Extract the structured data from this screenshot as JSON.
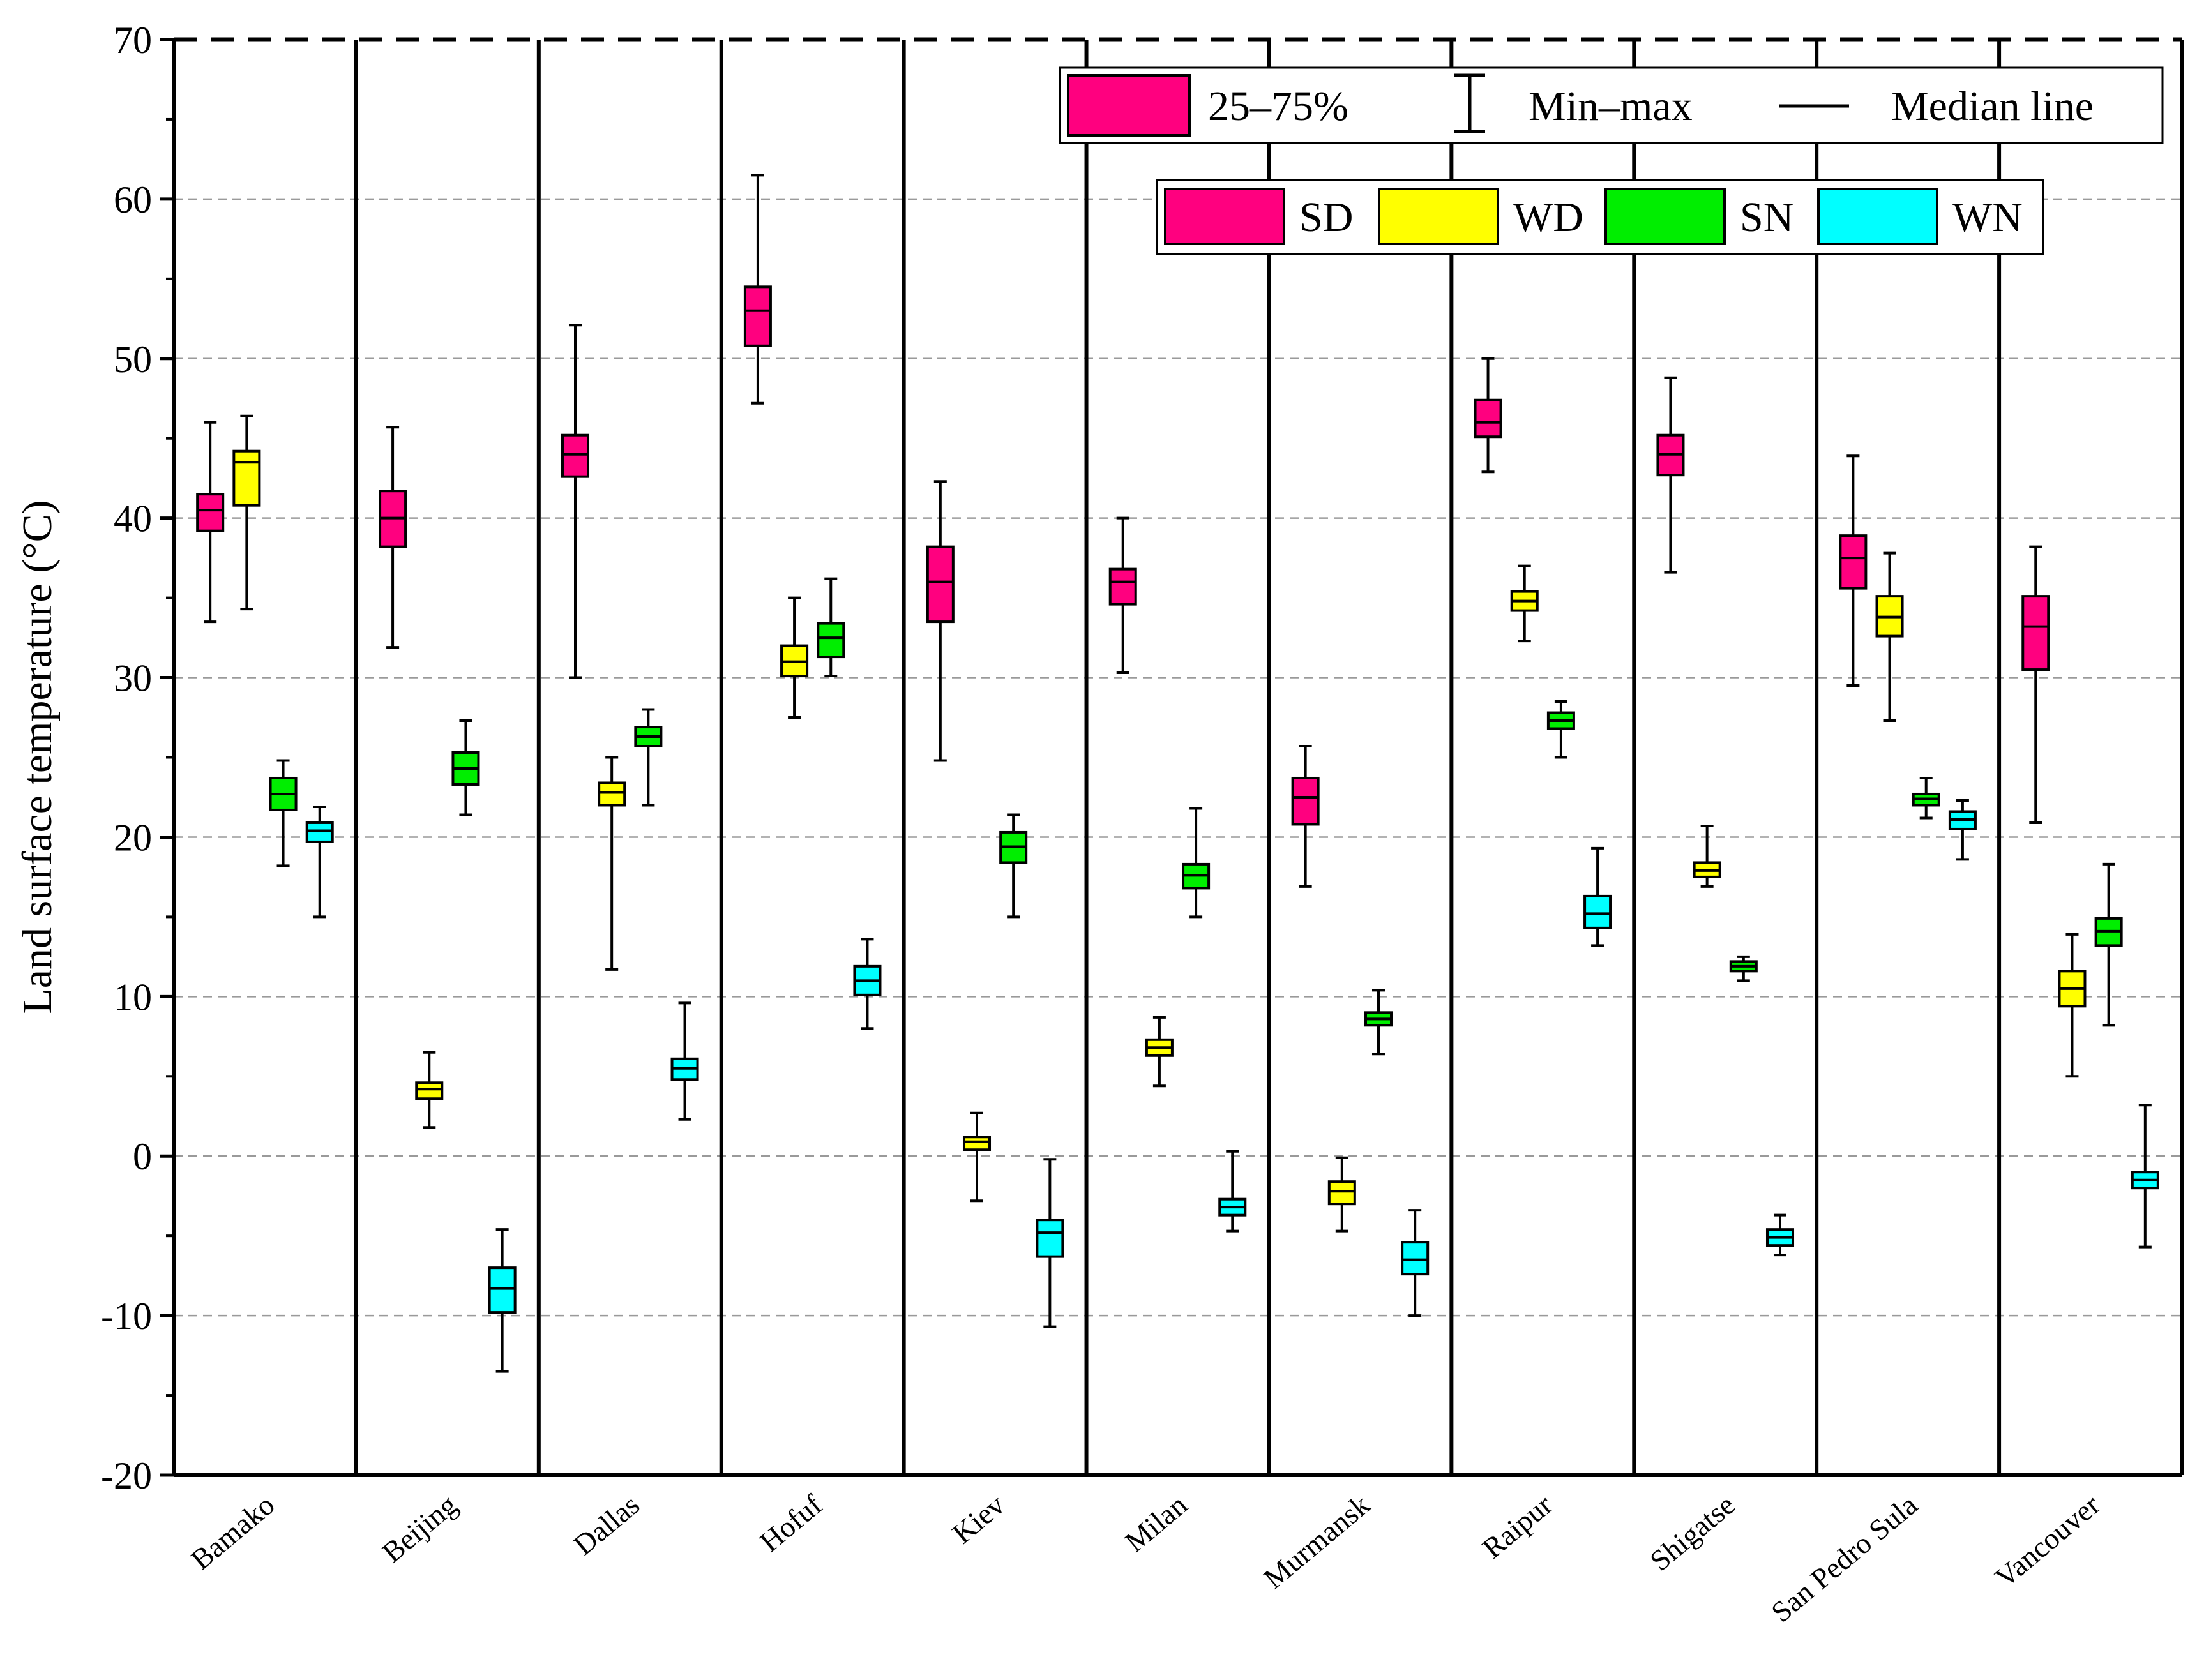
{
  "chart_data": {
    "type": "box",
    "title": "",
    "ylabel": "Land surface temperature (°C)",
    "xlabel": "",
    "ylim": [
      -20,
      70
    ],
    "yticks": [
      "-20",
      "-10",
      "0",
      "10",
      "20",
      "30",
      "40",
      "50",
      "60",
      "70"
    ],
    "grid": "dashed horizontal",
    "categories": [
      "Bamako",
      "Beijing",
      "Dallas",
      "Hofuf",
      "Kiev",
      "Milan",
      "Murmansk",
      "Raipur",
      "Shigatse",
      "San Pedro Sula",
      "Vancouver"
    ],
    "legend_stats": {
      "box": "25–75%",
      "whisker": "Min–max",
      "median": "Median line"
    },
    "series": [
      {
        "name": "SD",
        "color": "#FF007F",
        "boxes": [
          {
            "min": 33.5,
            "q1": 39.2,
            "median": 40.5,
            "q3": 41.5,
            "max": 46.0
          },
          {
            "min": 31.9,
            "q1": 38.2,
            "median": 40.0,
            "q3": 41.7,
            "max": 45.7
          },
          {
            "min": 30.0,
            "q1": 42.6,
            "median": 44.0,
            "q3": 45.2,
            "max": 52.1
          },
          {
            "min": 47.2,
            "q1": 50.8,
            "median": 53.0,
            "q3": 54.5,
            "max": 61.5
          },
          {
            "min": 24.8,
            "q1": 33.5,
            "median": 36.0,
            "q3": 38.2,
            "max": 42.3
          },
          {
            "min": 30.3,
            "q1": 34.6,
            "median": 36.0,
            "q3": 36.8,
            "max": 40.0
          },
          {
            "min": 16.9,
            "q1": 20.8,
            "median": 22.5,
            "q3": 23.7,
            "max": 25.7
          },
          {
            "min": 42.9,
            "q1": 45.1,
            "median": 46.0,
            "q3": 47.4,
            "max": 50.0
          },
          {
            "min": 36.6,
            "q1": 42.7,
            "median": 44.0,
            "q3": 45.2,
            "max": 48.8
          },
          {
            "min": 29.5,
            "q1": 35.6,
            "median": 37.5,
            "q3": 38.9,
            "max": 43.9
          },
          {
            "min": 20.9,
            "q1": 30.5,
            "median": 33.2,
            "q3": 35.1,
            "max": 38.2
          }
        ]
      },
      {
        "name": "WD",
        "color": "#FFFF00",
        "boxes": [
          {
            "min": 34.3,
            "q1": 40.8,
            "median": 43.5,
            "q3": 44.2,
            "max": 46.4
          },
          {
            "min": 1.8,
            "q1": 3.6,
            "median": 4.2,
            "q3": 4.6,
            "max": 6.5
          },
          {
            "min": 11.7,
            "q1": 22.0,
            "median": 22.8,
            "q3": 23.4,
            "max": 25.0
          },
          {
            "min": 27.5,
            "q1": 30.1,
            "median": 31.0,
            "q3": 32.0,
            "max": 35.0
          },
          {
            "min": -2.8,
            "q1": 0.4,
            "median": 0.9,
            "q3": 1.2,
            "max": 2.7
          },
          {
            "min": 4.4,
            "q1": 6.3,
            "median": 6.8,
            "q3": 7.3,
            "max": 8.7
          },
          {
            "min": -4.7,
            "q1": -3.0,
            "median": -2.2,
            "q3": -1.6,
            "max": -0.1
          },
          {
            "min": 32.3,
            "q1": 34.2,
            "median": 34.8,
            "q3": 35.4,
            "max": 37.0
          },
          {
            "min": 16.9,
            "q1": 17.5,
            "median": 17.9,
            "q3": 18.4,
            "max": 20.7
          },
          {
            "min": 27.3,
            "q1": 32.6,
            "median": 33.8,
            "q3": 35.1,
            "max": 37.8
          },
          {
            "min": 5.0,
            "q1": 9.4,
            "median": 10.5,
            "q3": 11.6,
            "max": 13.9
          }
        ]
      },
      {
        "name": "SN",
        "color": "#00EE00",
        "boxes": [
          {
            "min": 18.2,
            "q1": 21.7,
            "median": 22.7,
            "q3": 23.7,
            "max": 24.8
          },
          {
            "min": 21.4,
            "q1": 23.3,
            "median": 24.3,
            "q3": 25.3,
            "max": 27.3
          },
          {
            "min": 22.0,
            "q1": 25.7,
            "median": 26.3,
            "q3": 26.9,
            "max": 28.0
          },
          {
            "min": 30.1,
            "q1": 31.3,
            "median": 32.5,
            "q3": 33.4,
            "max": 36.2
          },
          {
            "min": 15.0,
            "q1": 18.4,
            "median": 19.4,
            "q3": 20.3,
            "max": 21.4
          },
          {
            "min": 15.0,
            "q1": 16.8,
            "median": 17.6,
            "q3": 18.3,
            "max": 21.8
          },
          {
            "min": 6.4,
            "q1": 8.2,
            "median": 8.6,
            "q3": 9.0,
            "max": 10.4
          },
          {
            "min": 25.0,
            "q1": 26.8,
            "median": 27.3,
            "q3": 27.8,
            "max": 28.5
          },
          {
            "min": 11.0,
            "q1": 11.6,
            "median": 11.9,
            "q3": 12.2,
            "max": 12.5
          },
          {
            "min": 21.2,
            "q1": 22.0,
            "median": 22.4,
            "q3": 22.7,
            "max": 23.7
          },
          {
            "min": 8.2,
            "q1": 13.2,
            "median": 14.1,
            "q3": 14.9,
            "max": 18.3
          }
        ]
      },
      {
        "name": "WN",
        "color": "#00FFFF",
        "boxes": [
          {
            "min": 15.0,
            "q1": 19.7,
            "median": 20.4,
            "q3": 20.9,
            "max": 21.9
          },
          {
            "min": -13.5,
            "q1": -9.8,
            "median": -8.3,
            "q3": -7.0,
            "max": -4.6
          },
          {
            "min": 2.3,
            "q1": 4.8,
            "median": 5.5,
            "q3": 6.1,
            "max": 9.6
          },
          {
            "min": 8.0,
            "q1": 10.1,
            "median": 11.0,
            "q3": 11.9,
            "max": 13.6
          },
          {
            "min": -10.7,
            "q1": -6.3,
            "median": -4.8,
            "q3": -4.0,
            "max": -0.2
          },
          {
            "min": -4.7,
            "q1": -3.7,
            "median": -3.2,
            "q3": -2.7,
            "max": 0.3
          },
          {
            "min": -10.0,
            "q1": -7.4,
            "median": -6.5,
            "q3": -5.4,
            "max": -3.4
          },
          {
            "min": 13.2,
            "q1": 14.3,
            "median": 15.2,
            "q3": 16.3,
            "max": 19.3
          },
          {
            "min": -6.2,
            "q1": -5.6,
            "median": -5.1,
            "q3": -4.6,
            "max": -3.7
          },
          {
            "min": 18.6,
            "q1": 20.5,
            "median": 21.1,
            "q3": 21.6,
            "max": 22.3
          },
          {
            "min": -5.7,
            "q1": -2.0,
            "median": -1.5,
            "q3": -1.0,
            "max": 3.2
          }
        ]
      }
    ]
  }
}
